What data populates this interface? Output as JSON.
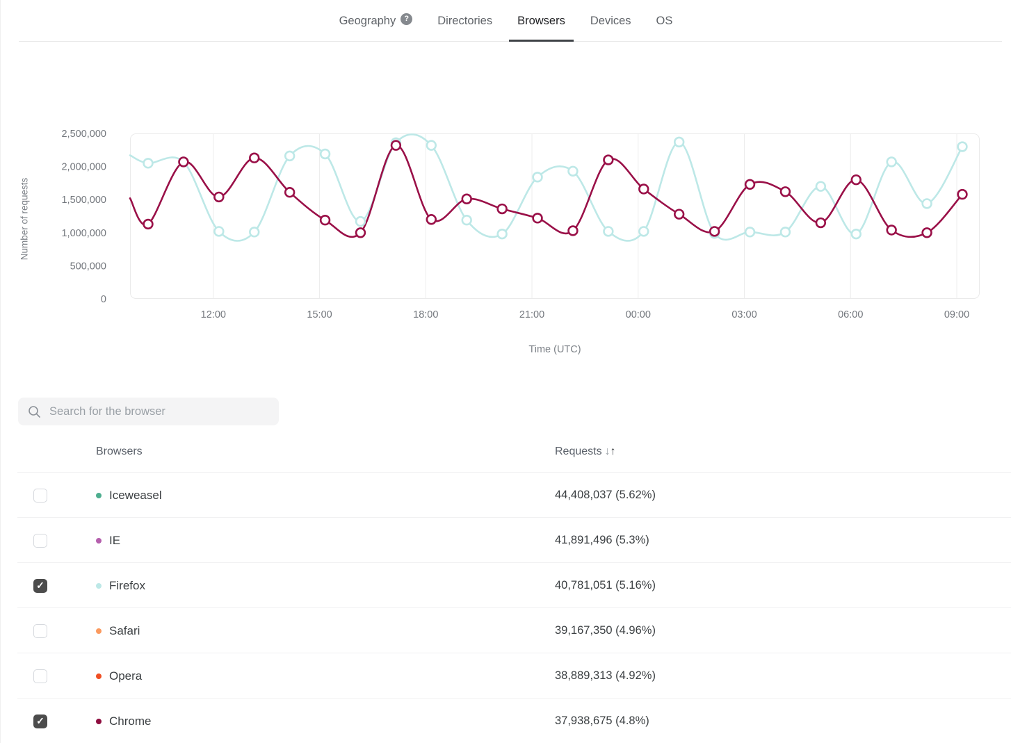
{
  "tabbar": {
    "tabs": [
      {
        "label": "Geography"
      },
      {
        "label": "Directories"
      },
      {
        "label": "Browsers"
      },
      {
        "label": "Devices"
      },
      {
        "label": "OS"
      }
    ],
    "help_icon": "?"
  },
  "chart": {
    "ylabel": "Number of requests",
    "xlabel": "Time (UTC)"
  },
  "chart_data": {
    "type": "line",
    "title": "",
    "xlabel": "Time (UTC)",
    "ylabel": "Number of requests",
    "ylim": [
      0,
      2500000
    ],
    "grid": "vertical",
    "legend_position": "none",
    "x": [
      "10:00",
      "11:00",
      "12:00",
      "13:00",
      "14:00",
      "15:00",
      "16:00",
      "17:00",
      "18:00",
      "19:00",
      "20:00",
      "21:00",
      "22:00",
      "23:00",
      "00:00",
      "01:00",
      "02:00",
      "03:00",
      "04:00",
      "05:00",
      "06:00",
      "07:00",
      "08:00",
      "09:00"
    ],
    "x_ticks": [
      "12:00",
      "15:00",
      "18:00",
      "21:00",
      "00:00",
      "03:00",
      "06:00",
      "09:00"
    ],
    "y_ticks": [
      {
        "label": "2,500,000",
        "value": 2500000
      },
      {
        "label": "2,000,000",
        "value": 2000000
      },
      {
        "label": "1,500,000",
        "value": 1500000
      },
      {
        "label": "1,000,000",
        "value": 1000000
      },
      {
        "label": "500,000",
        "value": 500000
      },
      {
        "label": "0",
        "value": 0
      }
    ],
    "series": [
      {
        "name": "Firefox",
        "color": "#BDE8E7",
        "edge_start": 2170000,
        "values": [
          2050000,
          2070000,
          1020000,
          1010000,
          2160000,
          2190000,
          1170000,
          2360000,
          2320000,
          1190000,
          980000,
          1840000,
          1930000,
          1020000,
          1020000,
          2370000,
          990000,
          1010000,
          1010000,
          1700000,
          980000,
          2070000,
          1440000,
          2300000
        ]
      },
      {
        "name": "Chrome",
        "color": "#9A1048",
        "edge_start": 1520000,
        "values": [
          1130000,
          2070000,
          1540000,
          2130000,
          1610000,
          1190000,
          1000000,
          2320000,
          1200000,
          1510000,
          1360000,
          1220000,
          1030000,
          2100000,
          1660000,
          1280000,
          1020000,
          1730000,
          1620000,
          1150000,
          1800000,
          1040000,
          1000000,
          1580000
        ]
      }
    ]
  },
  "search": {
    "placeholder": "Search for the browser"
  },
  "table": {
    "headers": {
      "browsers": "Browsers",
      "requests": "Requests",
      "sort_desc_icon": "↓",
      "sort_asc_icon": "↑"
    },
    "rows": [
      {
        "name": "Iceweasel",
        "color": "#4DAE8F",
        "checked": false,
        "requests": "44,408,037 (5.62%)"
      },
      {
        "name": "IE",
        "color": "#B55FAD",
        "checked": false,
        "requests": "41,891,496 (5.3%)"
      },
      {
        "name": "Firefox",
        "color": "#BDE8E7",
        "checked": true,
        "requests": "40,781,051 (5.16%)"
      },
      {
        "name": "Safari",
        "color": "#FB9A5F",
        "checked": false,
        "requests": "39,167,350 (4.96%)"
      },
      {
        "name": "Opera",
        "color": "#F04F23",
        "checked": false,
        "requests": "38,889,313 (4.92%)"
      },
      {
        "name": "Chrome",
        "color": "#8E0D3F",
        "checked": true,
        "requests": "37,938,675 (4.8%)"
      }
    ]
  }
}
